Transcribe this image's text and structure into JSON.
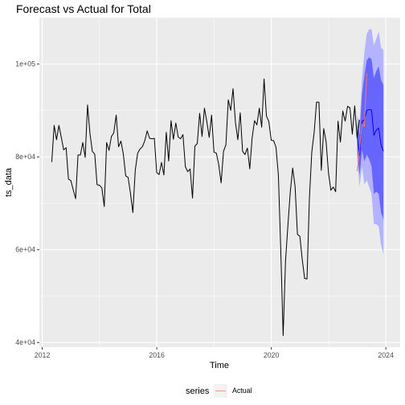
{
  "chart_data": {
    "type": "line",
    "title": "Forecast vs Actual for Total",
    "xlabel": "Time",
    "ylabel": "ts_data",
    "xlim": [
      2011.9,
      2024.5
    ],
    "ylim": [
      39000,
      110000
    ],
    "x_ticks": [
      2012,
      2016,
      2020,
      2024
    ],
    "x_tick_labels": [
      "2012",
      "2016",
      "2020",
      "2024"
    ],
    "y_ticks": [
      40000,
      60000,
      80000,
      100000
    ],
    "y_tick_labels": [
      "4e+04",
      "6e+04",
      "8e+04",
      "1e+05"
    ],
    "grid": true,
    "legend": {
      "title": "series",
      "position": "bottom",
      "entries": [
        "Actual"
      ]
    },
    "colors": {
      "history": "#000000",
      "actual": "#f8766d",
      "forecast": "#0000ff",
      "band80": "#6666ff",
      "band95": "#b3b3ff",
      "panel": "#ebebeb",
      "grid": "#ffffff"
    },
    "history": {
      "start": 2012.333,
      "step": 0.0833,
      "values": [
        78900,
        86800,
        83700,
        86800,
        84200,
        81500,
        82000,
        75200,
        74900,
        72900,
        71000,
        80400,
        80400,
        83100,
        79900,
        91200,
        85100,
        81200,
        80600,
        74000,
        73900,
        73300,
        69300,
        83100,
        81400,
        84400,
        85200,
        89000,
        82200,
        83400,
        80600,
        75900,
        75600,
        72100,
        68000,
        77100,
        80800,
        81700,
        82200,
        83500,
        85600,
        84000,
        83900,
        84000,
        76600,
        76200,
        78800,
        76100,
        85300,
        79100,
        87800,
        83800,
        87300,
        84300,
        83900,
        84800,
        77900,
        76800,
        77400,
        71100,
        82300,
        82900,
        89400,
        84400,
        90500,
        87600,
        84200,
        89000,
        81000,
        80800,
        78300,
        74400,
        81200,
        82600,
        92300,
        90000,
        94700,
        87400,
        83700,
        89500,
        81200,
        80500,
        81900,
        77400,
        84100,
        87800,
        86900,
        90500,
        86400,
        96800,
        88800,
        87600,
        83600,
        83500,
        82100,
        76100,
        60000,
        41500,
        57600,
        65300,
        72500,
        77600,
        73600,
        63300,
        62900,
        57900,
        53800,
        53700,
        71000,
        81000,
        85300,
        91800,
        91800,
        77100,
        86100,
        83300,
        76600,
        72800,
        73500,
        72500,
        87700,
        83200,
        89900,
        87700,
        90900,
        90600,
        84900,
        91000,
        84100,
        88000
      ]
    },
    "actual": {
      "x": [
        2023.0,
        2023.083,
        2023.167,
        2023.25,
        2023.333
      ],
      "values": [
        76900,
        81900,
        87000,
        86600,
        98000
      ]
    },
    "forecast": {
      "x": [
        2023.0,
        2023.083,
        2023.167,
        2023.25,
        2023.333,
        2023.417,
        2023.5,
        2023.583,
        2023.667,
        2023.75,
        2023.833,
        2023.917
      ],
      "mean": [
        84300,
        80300,
        87600,
        88000,
        90000,
        90200,
        90100,
        84600,
        85800,
        86200,
        82500,
        81200
      ],
      "lo80": [
        81200,
        76000,
        81500,
        79000,
        80500,
        79500,
        78000,
        72000,
        72500,
        72000,
        68000,
        66500
      ],
      "hi80": [
        87400,
        84700,
        93500,
        97500,
        100800,
        101500,
        101000,
        97000,
        98500,
        99500,
        96500,
        95500
      ],
      "lo95": [
        79600,
        73500,
        78000,
        74000,
        75000,
        73500,
        72000,
        65500,
        65500,
        65000,
        61000,
        59000
      ],
      "hi95": [
        89000,
        87200,
        97000,
        102500,
        106500,
        107500,
        107500,
        104000,
        105500,
        107000,
        103500,
        103000
      ]
    }
  }
}
